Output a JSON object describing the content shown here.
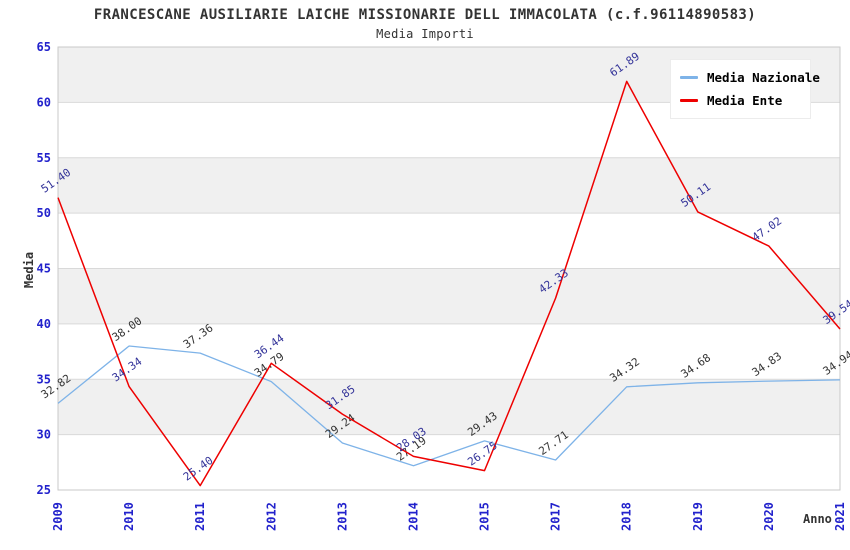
{
  "title": "FRANCESCANE AUSILIARIE LAICHE MISSIONARIE DELL IMMACOLATA (c.f.96114890583)",
  "subtitle": "Media Importi",
  "chart_data": {
    "type": "line",
    "categories": [
      "2009",
      "2010",
      "2011",
      "2012",
      "2013",
      "2014",
      "2015",
      "2017",
      "2018",
      "2019",
      "2020",
      "2021"
    ],
    "series": [
      {
        "name": "Media Nazionale",
        "color": "#7EB3E8",
        "label_color": "#333333",
        "values": [
          32.82,
          38.0,
          37.36,
          34.79,
          29.24,
          27.19,
          29.43,
          27.71,
          34.32,
          34.68,
          34.83,
          34.94
        ]
      },
      {
        "name": "Media Ente",
        "color": "#EE0000",
        "label_color": "#333399",
        "values": [
          51.4,
          34.34,
          25.4,
          36.44,
          31.85,
          28.03,
          26.75,
          42.33,
          61.89,
          50.11,
          47.02,
          39.54
        ]
      }
    ],
    "title": "Media Importi",
    "xlabel": "Anno",
    "ylabel": "Media",
    "ylim": [
      25,
      65
    ],
    "ytick_step": 5,
    "grid": true,
    "legend_position": "top-right"
  },
  "style": {
    "band_color": "#f0f0f0",
    "gridline_color": "#d9d9d9",
    "plot_border_color": "#c9c9c9",
    "tick_label_color": "#2222cc"
  }
}
